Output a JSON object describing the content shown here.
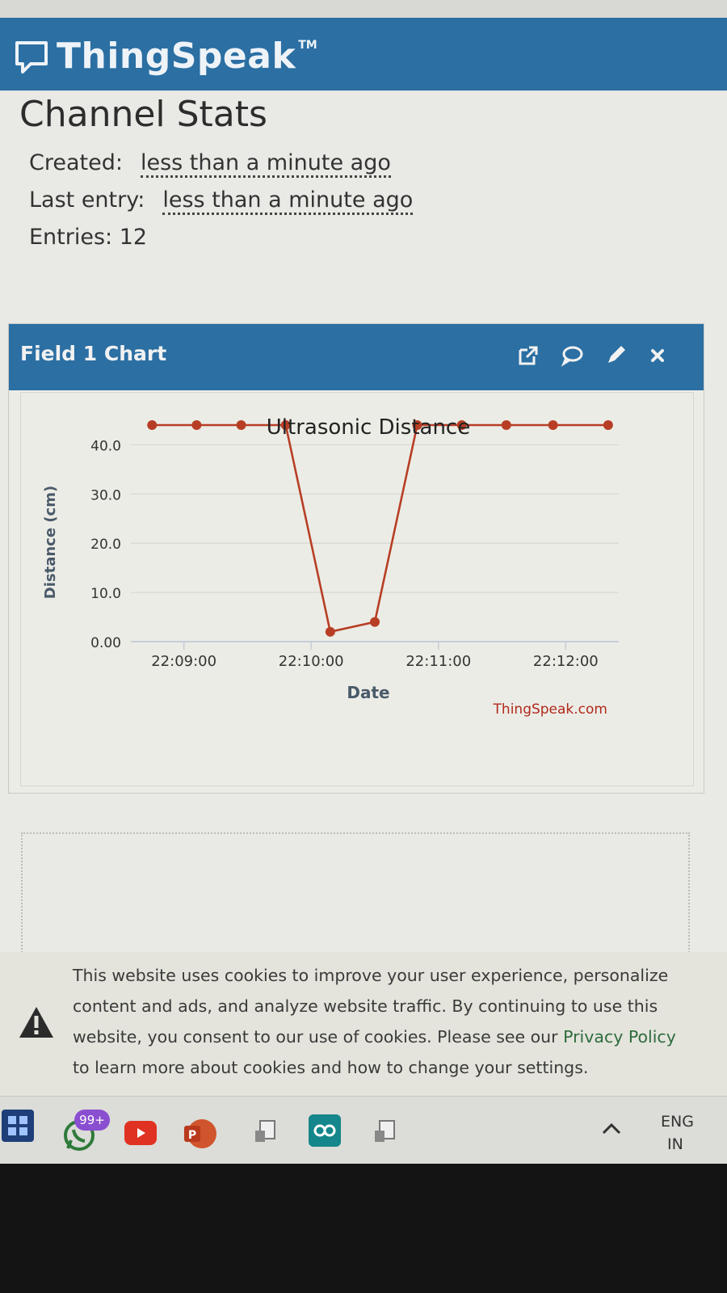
{
  "app": {
    "brand": "ThingSpeak",
    "trademark": "TM",
    "accent_color": "#2b6fa3"
  },
  "stats": {
    "title": "Channel Stats",
    "created_label": "Created:",
    "created_value": "less than a minute ago",
    "last_entry_label": "Last entry:",
    "last_entry_value": "less than a minute ago",
    "entries_text": "Entries: 12"
  },
  "chart_panel": {
    "title": "Field 1 Chart",
    "icons": [
      "external-link-icon",
      "comment-icon",
      "pencil-icon",
      "close-icon"
    ]
  },
  "chart_data": {
    "type": "line",
    "title": "Ultrasonic Distance",
    "xlabel": "Date",
    "ylabel": "Distance (cm)",
    "credit": "ThingSpeak.com",
    "x_ticks": [
      "22:09:00",
      "22:10:00",
      "22:11:00",
      "22:12:00"
    ],
    "y_ticks": [
      "0.00",
      "10.0",
      "20.0",
      "30.0",
      "40.0"
    ],
    "ylim": [
      0,
      44
    ],
    "xlim": [
      "22:08:35",
      "22:12:25"
    ],
    "grid": true,
    "series_color": "#b73e25",
    "series": [
      {
        "x": [
          "22:08:45",
          "22:09:06",
          "22:09:27",
          "22:09:48",
          "22:10:09",
          "22:10:30",
          "22:10:50",
          "22:11:11",
          "22:11:32",
          "22:11:54",
          "22:12:20"
        ],
        "values": [
          44,
          44,
          44,
          44,
          2,
          4,
          44,
          44,
          44,
          44,
          44
        ]
      }
    ]
  },
  "cookie_banner": {
    "text_before": "This website uses cookies to improve your user experience, personalize content and ads, and analyze website traffic. By continuing to use this website, you consent to our use of cookies. Please see our ",
    "link_text": "Privacy Policy",
    "text_after": " to learn more about cookies and how to change your settings.",
    "link_color": "#2e6b3d"
  },
  "taskbar": {
    "notification_badge": "99+",
    "lang_line1": "ENG",
    "lang_line2": "IN",
    "apps": [
      "start-icon",
      "whatsapp-icon",
      "youtube-icon",
      "powerpoint-icon",
      "app-icon",
      "arduino-icon",
      "app-icon"
    ]
  }
}
